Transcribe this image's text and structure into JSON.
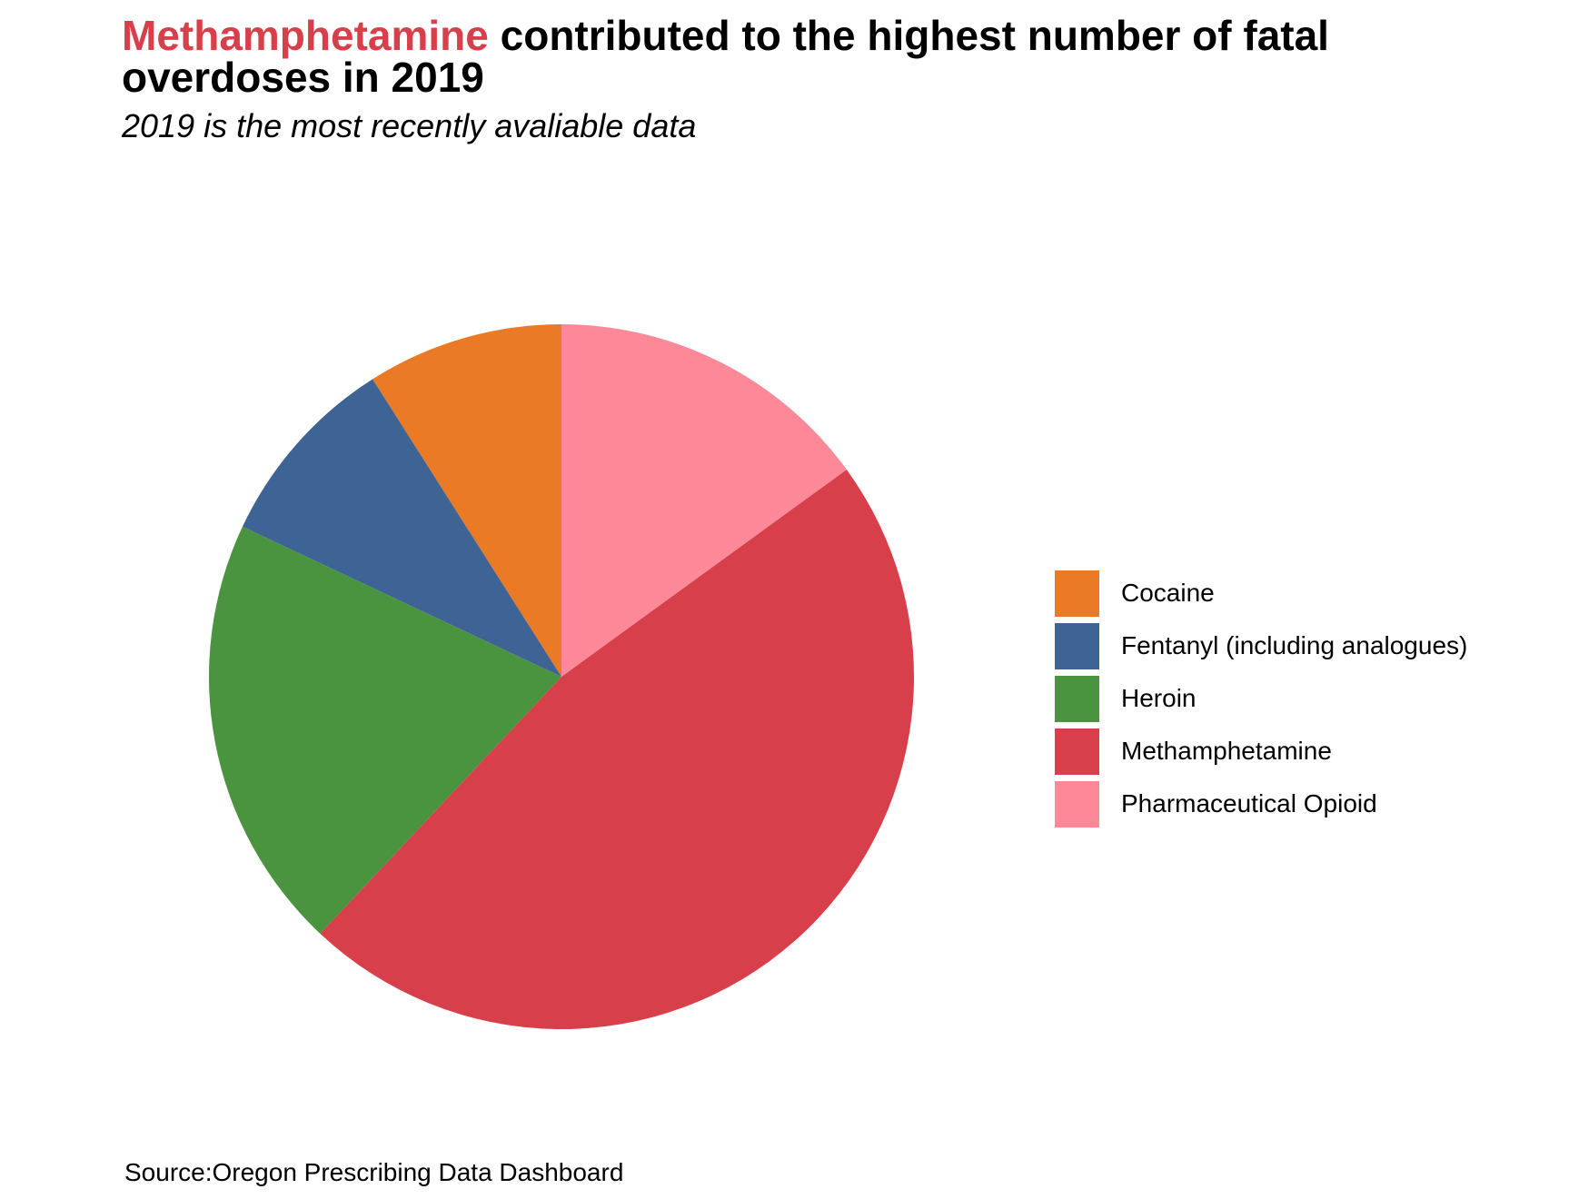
{
  "title": {
    "highlight": "Methamphetamine",
    "rest": " contributed to the highest number of fatal overdoses in 2019"
  },
  "subtitle": "2019 is the most recently avaliable data",
  "caption": "Source:Oregon Prescribing Data Dashboard",
  "chart_data": {
    "type": "pie",
    "title": "Methamphetamine contributed to the highest number of fatal overdoses in 2019",
    "subtitle": "2019 is the most recently avaliable data",
    "caption": "Source:Oregon Prescribing Data Dashboard",
    "legend_position": "right",
    "start": "12 o'clock",
    "direction": "counter-clockwise",
    "categories": [
      "Cocaine",
      "Fentanyl (including analogues)",
      "Heroin",
      "Methamphetamine",
      "Pharmaceutical Opioid"
    ],
    "values": [
      9,
      9,
      20,
      47,
      15
    ],
    "colors": [
      "#eb7a27",
      "#3e6395",
      "#4a933f",
      "#d7404a",
      "#fd8898"
    ]
  }
}
